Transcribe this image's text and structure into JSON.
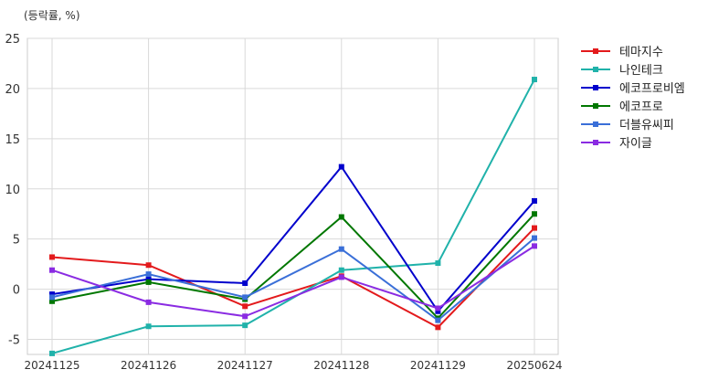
{
  "chart_data": {
    "type": "line",
    "ylabel": "(등락률, %)",
    "categories": [
      "20241125",
      "20241126",
      "20241127",
      "20241128",
      "20241129",
      "20250624"
    ],
    "ylim": [
      -6.5,
      25
    ],
    "yticks": [
      -5,
      0,
      5,
      10,
      15,
      20,
      25
    ],
    "grid": true,
    "legend_position": "right",
    "series": [
      {
        "name": "테마지수",
        "color": "#e31a1c",
        "values": [
          3.2,
          2.4,
          -1.7,
          1.3,
          -3.8,
          6.1
        ]
      },
      {
        "name": "나인테크",
        "color": "#20b2aa",
        "values": [
          -6.4,
          -3.7,
          -3.6,
          1.9,
          2.6,
          20.9
        ]
      },
      {
        "name": "에코프로비엠",
        "color": "#0000cc",
        "values": [
          -0.5,
          1.0,
          0.6,
          12.2,
          -2.2,
          8.8
        ]
      },
      {
        "name": "에코프로",
        "color": "#007700",
        "values": [
          -1.2,
          0.7,
          -1.0,
          7.2,
          -2.9,
          7.5
        ]
      },
      {
        "name": "더블유씨피",
        "color": "#3a6fd8",
        "values": [
          -0.8,
          1.5,
          -0.8,
          4.0,
          -3.1,
          5.1
        ]
      },
      {
        "name": "자이글",
        "color": "#8a2be2",
        "values": [
          1.9,
          -1.3,
          -2.7,
          1.2,
          -1.9,
          4.3
        ]
      }
    ]
  }
}
